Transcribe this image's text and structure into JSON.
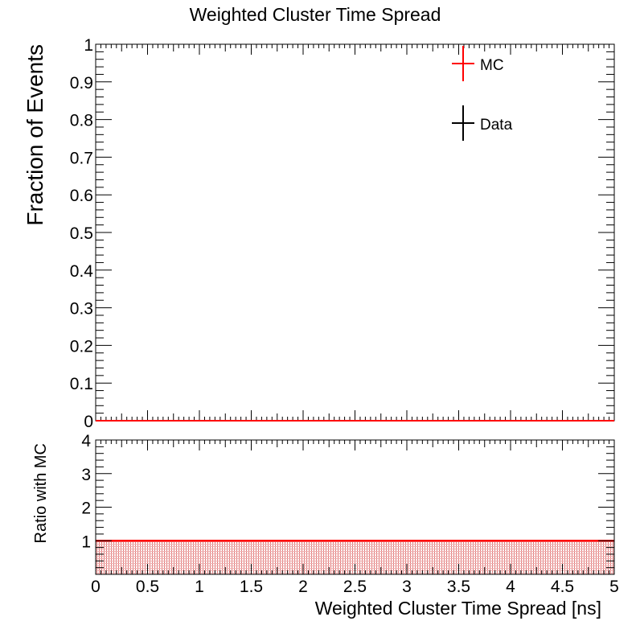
{
  "chart_data": [
    {
      "type": "line",
      "panel": "main",
      "title": "Weighted Cluster Time Spread",
      "ylabel": "Fraction of Events",
      "xlim": [
        0,
        5
      ],
      "ylim": [
        0,
        1
      ],
      "yticks": [
        "0",
        "0.1",
        "0.2",
        "0.3",
        "0.4",
        "0.5",
        "0.6",
        "0.7",
        "0.8",
        "0.9",
        "1"
      ],
      "legend_position": "top-right",
      "series": [
        {
          "name": "MC",
          "color": "#ff0000",
          "x": [
            0,
            5
          ],
          "y": [
            0,
            0
          ]
        },
        {
          "name": "Data",
          "color": "#000000",
          "x": [
            0,
            5
          ],
          "y": [
            0,
            0
          ]
        }
      ]
    },
    {
      "type": "line",
      "panel": "ratio",
      "xlabel": "Weighted Cluster Time Spread [ns]",
      "ylabel": "Ratio with MC",
      "xlim": [
        0,
        5
      ],
      "ylim": [
        0,
        4
      ],
      "xticks": [
        "0",
        "0.5",
        "1",
        "1.5",
        "2",
        "2.5",
        "3",
        "3.5",
        "4",
        "4.5",
        "5"
      ],
      "yticks": [
        "1",
        "2",
        "3",
        "4"
      ],
      "series": [
        {
          "name": "MC",
          "color": "#ff0000",
          "x": [
            0,
            5
          ],
          "y": [
            1,
            1
          ],
          "band_fill": "hatched"
        }
      ]
    }
  ]
}
